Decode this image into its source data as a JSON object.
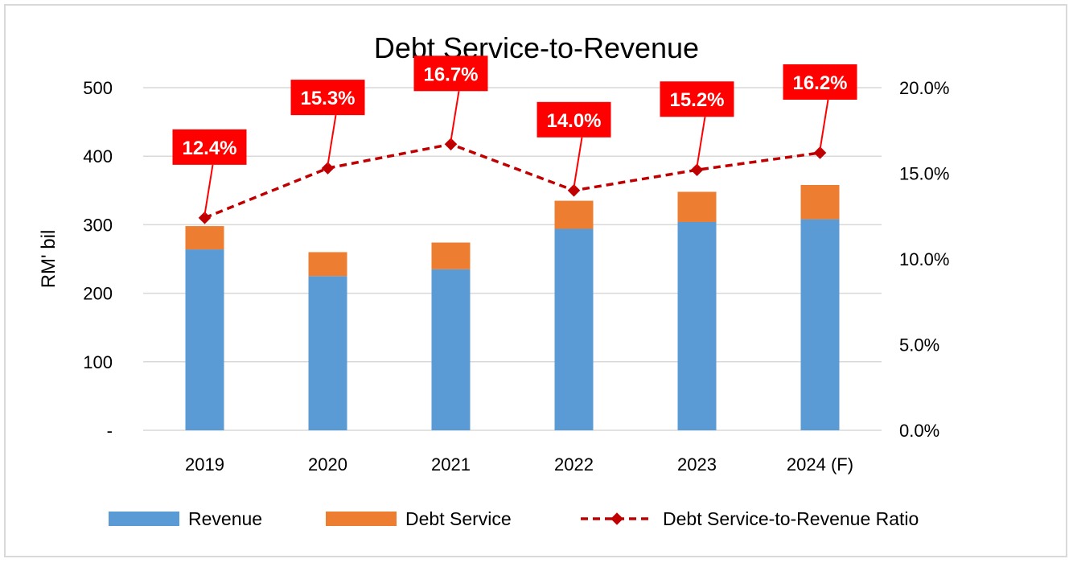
{
  "chart_data": {
    "type": "bar",
    "title": "Debt Service-to-Revenue",
    "ylabel": "RM' bil",
    "categories": [
      "2019",
      "2020",
      "2021",
      "2022",
      "2023",
      "2024 (F)"
    ],
    "series": [
      {
        "name": "Revenue",
        "kind": "stacked-bar",
        "axis": "left",
        "color": "#5b9bd5",
        "values": [
          264,
          225,
          235,
          294,
          304,
          308
        ]
      },
      {
        "name": "Debt Service",
        "kind": "stacked-bar",
        "axis": "left",
        "color": "#ed7d31",
        "values": [
          34,
          35,
          39,
          41,
          44,
          50
        ]
      },
      {
        "name": "Debt Service-to-Revenue Ratio",
        "kind": "line",
        "axis": "right",
        "color": "#c00000",
        "values": [
          12.4,
          15.3,
          16.7,
          14.0,
          15.2,
          16.2
        ]
      }
    ],
    "data_labels": [
      "12.4%",
      "15.3%",
      "16.7%",
      "14.0%",
      "15.2%",
      "16.2%"
    ],
    "ylim": [
      0,
      500
    ],
    "y2lim": [
      0,
      20
    ],
    "left_ticks": [
      {
        "value": 0,
        "label": "-"
      },
      {
        "value": 100,
        "label": "100"
      },
      {
        "value": 200,
        "label": "200"
      },
      {
        "value": 300,
        "label": "300"
      },
      {
        "value": 400,
        "label": "400"
      },
      {
        "value": 500,
        "label": "500"
      }
    ],
    "right_ticks": [
      {
        "value": 0,
        "label": "0.0%"
      },
      {
        "value": 5,
        "label": "5.0%"
      },
      {
        "value": 10,
        "label": "10.0%"
      },
      {
        "value": 15,
        "label": "15.0%"
      },
      {
        "value": 20,
        "label": "20.0%"
      }
    ],
    "grid": true,
    "legend_position": "bottom",
    "label_color": "#ff0000"
  }
}
